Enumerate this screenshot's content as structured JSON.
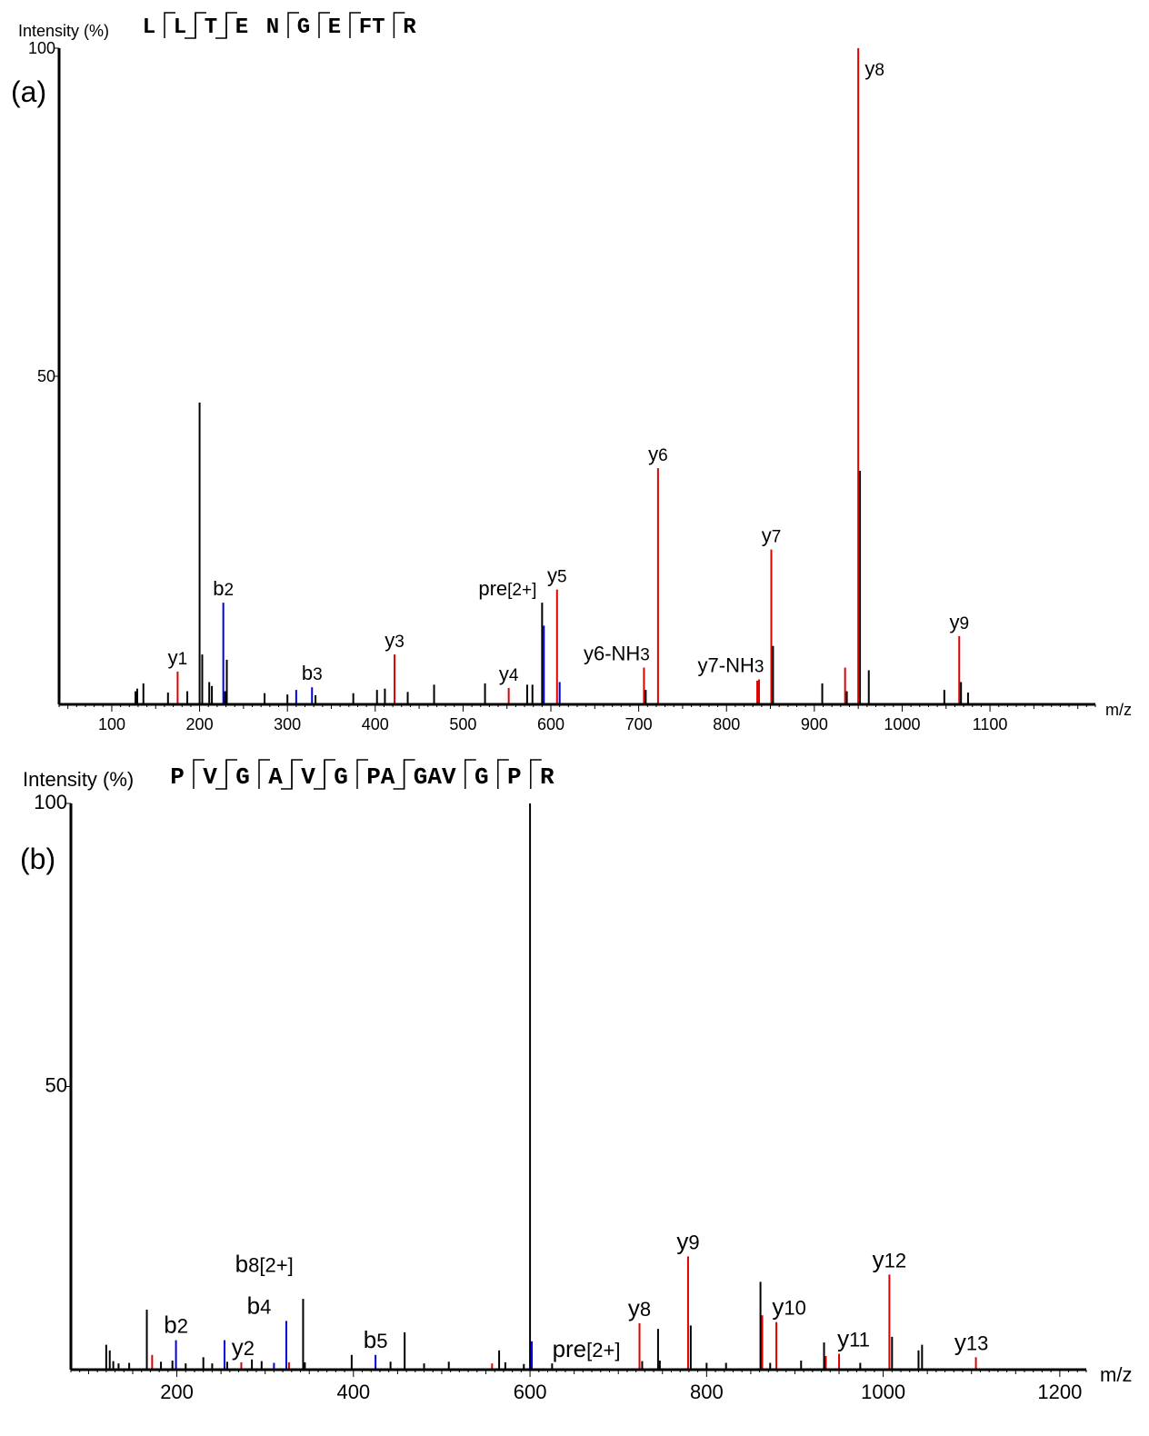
{
  "chart_data": [
    {
      "type": "bar",
      "panel_label": "(a)",
      "ylabel": "Intensity (%)",
      "xlabel": "m/z",
      "sequence": [
        {
          "text": "L",
          "y": false,
          "b": false
        },
        {
          "text": "L",
          "y": true,
          "b": true
        },
        {
          "text": "T",
          "y": true,
          "b": true
        },
        {
          "text": "E",
          "y": true,
          "b": false
        },
        {
          "text": "N",
          "y": false,
          "b": false
        },
        {
          "text": "G",
          "y": true,
          "b": false
        },
        {
          "text": "E",
          "y": true,
          "b": false
        },
        {
          "text": "FT",
          "y": true,
          "b": false
        },
        {
          "text": "R",
          "y": true,
          "b": false
        }
      ],
      "xlim": [
        40,
        1220
      ],
      "ylim": [
        0,
        100
      ],
      "xticks": [
        100,
        200,
        300,
        400,
        500,
        600,
        700,
        800,
        900,
        1000,
        1100
      ],
      "yticks": [
        50,
        100
      ],
      "peaks": [
        {
          "mz": 127,
          "i": 2,
          "c": "black"
        },
        {
          "mz": 129,
          "i": 2.4,
          "c": "black"
        },
        {
          "mz": 136,
          "i": 3.2,
          "c": "black"
        },
        {
          "mz": 164,
          "i": 1.8,
          "c": "black"
        },
        {
          "mz": 175,
          "i": 5,
          "c": "red"
        },
        {
          "mz": 186,
          "i": 2,
          "c": "black"
        },
        {
          "mz": 200,
          "i": 46,
          "c": "black"
        },
        {
          "mz": 203,
          "i": 7.6,
          "c": "black"
        },
        {
          "mz": 211,
          "i": 3.4,
          "c": "black"
        },
        {
          "mz": 214,
          "i": 2.8,
          "c": "black"
        },
        {
          "mz": 227,
          "i": 15.5,
          "c": "blue"
        },
        {
          "mz": 229,
          "i": 2,
          "c": "black"
        },
        {
          "mz": 231,
          "i": 6.8,
          "c": "black"
        },
        {
          "mz": 274,
          "i": 1.7,
          "c": "black"
        },
        {
          "mz": 300,
          "i": 1.5,
          "c": "black"
        },
        {
          "mz": 310,
          "i": 2.2,
          "c": "blue"
        },
        {
          "mz": 328,
          "i": 2.6,
          "c": "blue"
        },
        {
          "mz": 332,
          "i": 1.4,
          "c": "black"
        },
        {
          "mz": 375,
          "i": 1.7,
          "c": "black"
        },
        {
          "mz": 402,
          "i": 2.2,
          "c": "black"
        },
        {
          "mz": 411,
          "i": 2.4,
          "c": "black"
        },
        {
          "mz": 422,
          "i": 7.6,
          "c": "red"
        },
        {
          "mz": 437,
          "i": 1.9,
          "c": "black"
        },
        {
          "mz": 467,
          "i": 3,
          "c": "black"
        },
        {
          "mz": 525,
          "i": 3.2,
          "c": "black"
        },
        {
          "mz": 552,
          "i": 2.5,
          "c": "red"
        },
        {
          "mz": 573,
          "i": 3,
          "c": "black"
        },
        {
          "mz": 579,
          "i": 3,
          "c": "black"
        },
        {
          "mz": 590,
          "i": 15.5,
          "c": "black"
        },
        {
          "mz": 592,
          "i": 12,
          "c": "blue"
        },
        {
          "mz": 607,
          "i": 17.5,
          "c": "red"
        },
        {
          "mz": 610,
          "i": 3.4,
          "c": "blue"
        },
        {
          "mz": 706,
          "i": 5.6,
          "c": "red"
        },
        {
          "mz": 708,
          "i": 2.2,
          "c": "black"
        },
        {
          "mz": 722,
          "i": 36,
          "c": "red"
        },
        {
          "mz": 835,
          "i": 3.6,
          "c": "red"
        },
        {
          "mz": 837,
          "i": 3.8,
          "c": "red"
        },
        {
          "mz": 851,
          "i": 23.6,
          "c": "red"
        },
        {
          "mz": 853,
          "i": 8.9,
          "c": "black"
        },
        {
          "mz": 909,
          "i": 3.2,
          "c": "black"
        },
        {
          "mz": 935,
          "i": 5.6,
          "c": "red"
        },
        {
          "mz": 937,
          "i": 2,
          "c": "black"
        },
        {
          "mz": 950,
          "i": 100,
          "c": "red"
        },
        {
          "mz": 952,
          "i": 35.6,
          "c": "black"
        },
        {
          "mz": 962,
          "i": 5.2,
          "c": "black"
        },
        {
          "mz": 1048,
          "i": 2.2,
          "c": "black"
        },
        {
          "mz": 1065,
          "i": 10.4,
          "c": "red"
        },
        {
          "mz": 1067,
          "i": 3.4,
          "c": "black"
        },
        {
          "mz": 1075,
          "i": 1.8,
          "c": "black"
        }
      ],
      "annotations": [
        {
          "mz": 175,
          "i": 5,
          "base": "y",
          "sub": "1"
        },
        {
          "mz": 227,
          "i": 15.5,
          "base": "b",
          "sub": "2"
        },
        {
          "mz": 328,
          "i": 2.6,
          "base": "b",
          "sub": "3"
        },
        {
          "mz": 422,
          "i": 7.6,
          "base": "y",
          "sub": "3"
        },
        {
          "mz": 552,
          "i": 2.5,
          "base": "y",
          "sub": "4"
        },
        {
          "mz": 590,
          "i": 15.5,
          "base": "pre",
          "sub": "[2+]",
          "dx": -38
        },
        {
          "mz": 607,
          "i": 17.5,
          "base": "y",
          "sub": "5"
        },
        {
          "mz": 706,
          "i": 5.6,
          "base": "y6-NH",
          "sub": "3",
          "dx": -30
        },
        {
          "mz": 722,
          "i": 36,
          "base": "y",
          "sub": "6"
        },
        {
          "mz": 836,
          "i": 3.8,
          "base": "y7-NH",
          "sub": "3",
          "dx": -30
        },
        {
          "mz": 851,
          "i": 23.6,
          "base": "y",
          "sub": "7"
        },
        {
          "mz": 950,
          "i": 100,
          "base": "y",
          "sub": "8",
          "side": "right"
        },
        {
          "mz": 1065,
          "i": 10.4,
          "base": "y",
          "sub": "9"
        }
      ]
    },
    {
      "type": "bar",
      "panel_label": "(b)",
      "ylabel": "Intensity (%)",
      "xlabel": "m/z",
      "sequence": [
        {
          "text": "P",
          "y": false,
          "b": false
        },
        {
          "text": "V",
          "y": true,
          "b": true
        },
        {
          "text": "G",
          "y": true,
          "b": false
        },
        {
          "text": "A",
          "y": true,
          "b": true
        },
        {
          "text": "V",
          "y": true,
          "b": true
        },
        {
          "text": "G",
          "y": true,
          "b": false
        },
        {
          "text": "PA",
          "y": true,
          "b": true
        },
        {
          "text": "GAV",
          "y": true,
          "b": false
        },
        {
          "text": "G",
          "y": true,
          "b": false
        },
        {
          "text": "P",
          "y": true,
          "b": false
        },
        {
          "text": "R",
          "y": true,
          "b": false
        }
      ],
      "xlim": [
        80,
        1230
      ],
      "ylim": [
        0,
        100
      ],
      "xticks": [
        200,
        400,
        600,
        800,
        1000,
        1200
      ],
      "yticks": [
        50,
        100
      ],
      "peaks": [
        {
          "mz": 120,
          "i": 4.4,
          "c": "black"
        },
        {
          "mz": 124,
          "i": 3.4,
          "c": "black"
        },
        {
          "mz": 128,
          "i": 1.5,
          "c": "black"
        },
        {
          "mz": 134,
          "i": 1.1,
          "c": "black"
        },
        {
          "mz": 146,
          "i": 1.2,
          "c": "black"
        },
        {
          "mz": 166,
          "i": 10.6,
          "c": "black"
        },
        {
          "mz": 172,
          "i": 2.6,
          "c": "red"
        },
        {
          "mz": 182,
          "i": 1.4,
          "c": "black"
        },
        {
          "mz": 195,
          "i": 1.6,
          "c": "black"
        },
        {
          "mz": 199,
          "i": 5.2,
          "c": "blue"
        },
        {
          "mz": 210,
          "i": 1.1,
          "c": "black"
        },
        {
          "mz": 230,
          "i": 2.2,
          "c": "black"
        },
        {
          "mz": 240,
          "i": 1.1,
          "c": "black"
        },
        {
          "mz": 254,
          "i": 5.2,
          "c": "blue"
        },
        {
          "mz": 257,
          "i": 1.4,
          "c": "black"
        },
        {
          "mz": 273,
          "i": 1.3,
          "c": "red"
        },
        {
          "mz": 285,
          "i": 1.8,
          "c": "black"
        },
        {
          "mz": 296,
          "i": 1.5,
          "c": "black"
        },
        {
          "mz": 310,
          "i": 1.2,
          "c": "blue"
        },
        {
          "mz": 324,
          "i": 8.6,
          "c": "blue"
        },
        {
          "mz": 327,
          "i": 1.3,
          "c": "red"
        },
        {
          "mz": 343,
          "i": 12.5,
          "c": "black"
        },
        {
          "mz": 345,
          "i": 1.3,
          "c": "black"
        },
        {
          "mz": 398,
          "i": 2.6,
          "c": "black"
        },
        {
          "mz": 425,
          "i": 2.6,
          "c": "blue"
        },
        {
          "mz": 442,
          "i": 1.4,
          "c": "black"
        },
        {
          "mz": 458,
          "i": 6.6,
          "c": "black"
        },
        {
          "mz": 480,
          "i": 1.1,
          "c": "black"
        },
        {
          "mz": 508,
          "i": 1.4,
          "c": "black"
        },
        {
          "mz": 557,
          "i": 1.1,
          "c": "red"
        },
        {
          "mz": 565,
          "i": 3.4,
          "c": "black"
        },
        {
          "mz": 572,
          "i": 1.3,
          "c": "black"
        },
        {
          "mz": 593,
          "i": 1,
          "c": "black"
        },
        {
          "mz": 600,
          "i": 100,
          "c": "black"
        },
        {
          "mz": 602,
          "i": 5,
          "c": "blue"
        },
        {
          "mz": 625,
          "i": 1.1,
          "c": "black"
        },
        {
          "mz": 724,
          "i": 8.2,
          "c": "red"
        },
        {
          "mz": 727,
          "i": 1.5,
          "c": "black"
        },
        {
          "mz": 745,
          "i": 7.2,
          "c": "black"
        },
        {
          "mz": 747,
          "i": 1.6,
          "c": "black"
        },
        {
          "mz": 779,
          "i": 20,
          "c": "red"
        },
        {
          "mz": 782,
          "i": 7.8,
          "c": "black"
        },
        {
          "mz": 800,
          "i": 1.2,
          "c": "black"
        },
        {
          "mz": 822,
          "i": 1.2,
          "c": "black"
        },
        {
          "mz": 861,
          "i": 15.5,
          "c": "black"
        },
        {
          "mz": 863,
          "i": 9.6,
          "c": "red"
        },
        {
          "mz": 872,
          "i": 1.2,
          "c": "black"
        },
        {
          "mz": 879,
          "i": 8.4,
          "c": "red"
        },
        {
          "mz": 907,
          "i": 1.6,
          "c": "black"
        },
        {
          "mz": 933,
          "i": 4.8,
          "c": "black"
        },
        {
          "mz": 935,
          "i": 2.4,
          "c": "red"
        },
        {
          "mz": 950,
          "i": 2.8,
          "c": "red"
        },
        {
          "mz": 974,
          "i": 1.2,
          "c": "black"
        },
        {
          "mz": 1007,
          "i": 16.8,
          "c": "red"
        },
        {
          "mz": 1010,
          "i": 5.8,
          "c": "black"
        },
        {
          "mz": 1040,
          "i": 3.4,
          "c": "black"
        },
        {
          "mz": 1044,
          "i": 4.4,
          "c": "black"
        },
        {
          "mz": 1105,
          "i": 2.2,
          "c": "red"
        }
      ],
      "annotations": [
        {
          "mz": 199,
          "i": 5.2,
          "base": "b",
          "sub": "2"
        },
        {
          "mz": 275,
          "i": 1.3,
          "base": "y",
          "sub": "2",
          "dx": 0
        },
        {
          "mz": 324,
          "i": 8.6,
          "base": "b",
          "sub": "4",
          "dx": -30
        },
        {
          "mz": 335,
          "i": 16,
          "base": "b",
          "sub": "8[2+]",
          "dx": -35,
          "fixed": true
        },
        {
          "mz": 425,
          "i": 2.6,
          "base": "b",
          "sub": "5"
        },
        {
          "mz": 602,
          "i": 1,
          "base": "pre",
          "sub": "[2+]",
          "dx": 60
        },
        {
          "mz": 724,
          "i": 8.2,
          "base": "y",
          "sub": "8"
        },
        {
          "mz": 779,
          "i": 20,
          "base": "y",
          "sub": "9"
        },
        {
          "mz": 879,
          "i": 8.4,
          "base": "y",
          "sub": "10",
          "dx": 14
        },
        {
          "mz": 950,
          "i": 2.8,
          "base": "y",
          "sub": "11",
          "dx": 16
        },
        {
          "mz": 1007,
          "i": 16.8,
          "base": "y",
          "sub": "12"
        },
        {
          "mz": 1105,
          "i": 2.2,
          "base": "y",
          "sub": "13",
          "dx": -5
        }
      ]
    }
  ]
}
